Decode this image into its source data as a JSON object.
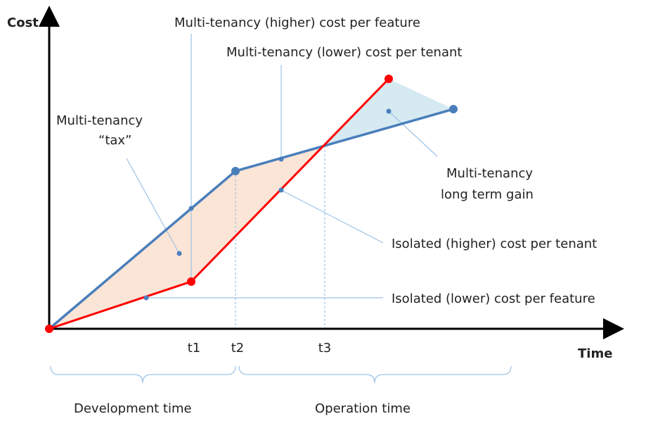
{
  "axes": {
    "y_label": "Cost",
    "x_label": "Time"
  },
  "ticks": [
    "t1",
    "t2",
    "t3"
  ],
  "annotations": {
    "mt_feature": "Multi-tenancy (higher) cost per feature",
    "mt_tenant": "Multi-tenancy (lower) cost per tenant",
    "tax": [
      "Multi-tenancy",
      "“tax”"
    ],
    "gain": [
      "Multi-tenancy",
      "long term gain"
    ],
    "iso_tenant": "Isolated (higher) cost per tenant",
    "iso_feature": "Isolated (lower) cost per feature"
  },
  "periods": [
    "Development time",
    "Operation time"
  ]
}
